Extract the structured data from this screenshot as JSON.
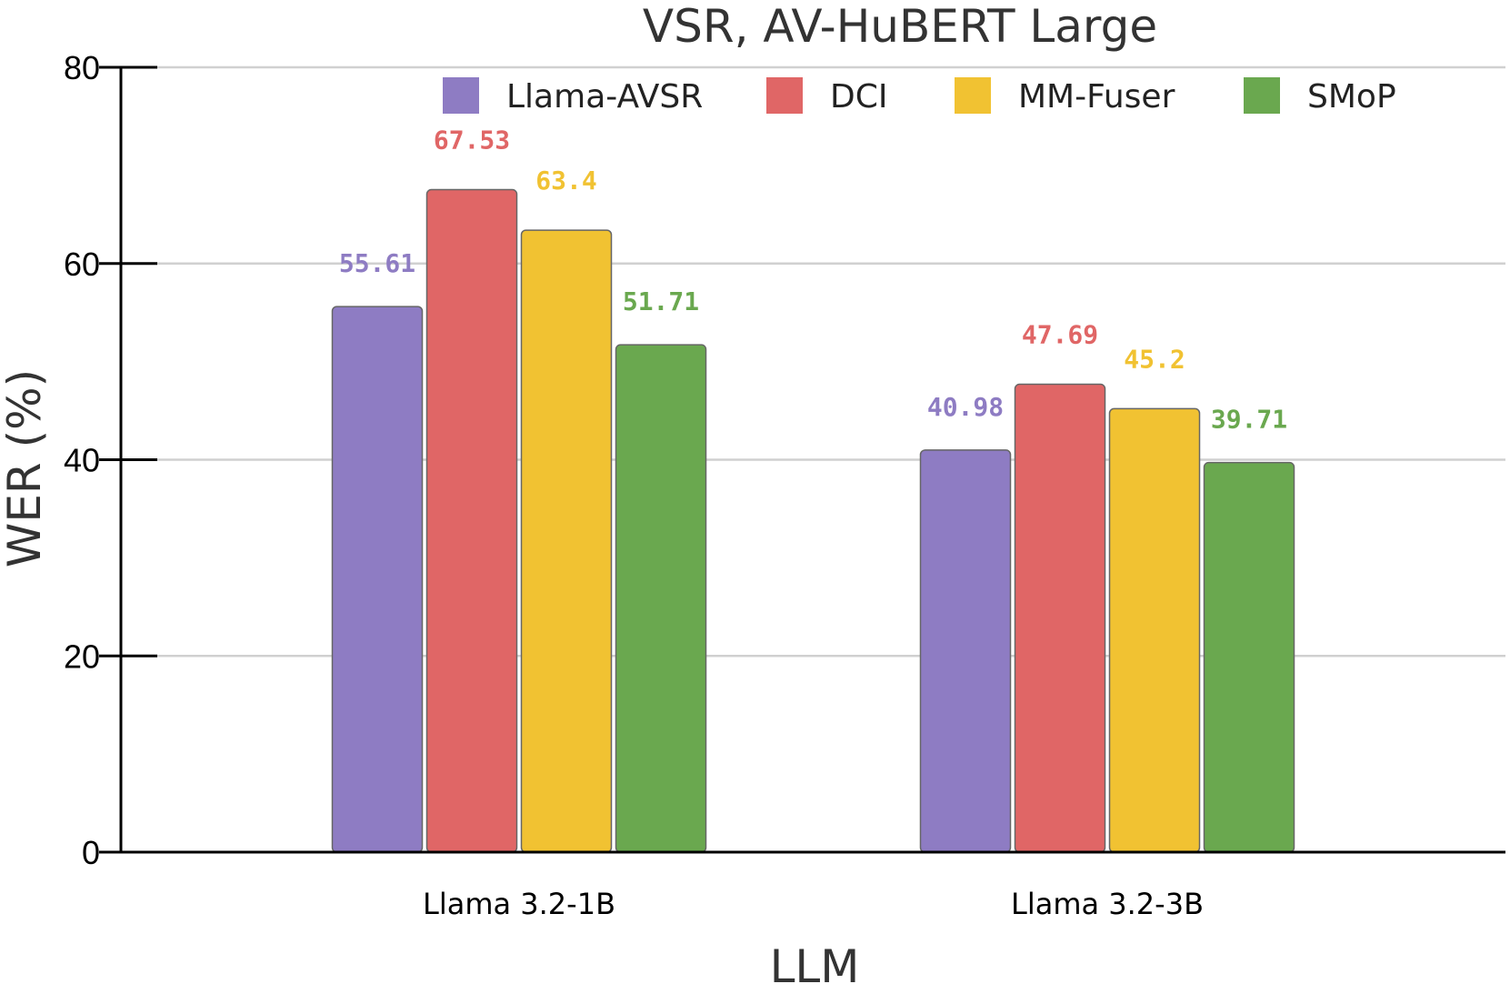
{
  "chart_data": {
    "type": "bar",
    "title": "VSR, AV-HuBERT Large",
    "xlabel": "LLM",
    "ylabel": "WER (%)",
    "ylim": [
      0,
      80
    ],
    "yticks": [
      0,
      20,
      40,
      60,
      80
    ],
    "grid": true,
    "legend_position": "top",
    "categories": [
      "Llama 3.2-1B",
      "Llama 3.2-3B"
    ],
    "series": [
      {
        "name": "Llama-AVSR",
        "color": "#8e7cc3",
        "values": [
          55.61,
          40.98
        ],
        "labels": [
          "55.61",
          "40.98"
        ]
      },
      {
        "name": "DCI",
        "color": "#e06666",
        "values": [
          67.53,
          47.69
        ],
        "labels": [
          "67.53",
          "47.69"
        ]
      },
      {
        "name": "MM-Fuser",
        "color": "#f1c232",
        "values": [
          63.4,
          45.2
        ],
        "labels": [
          "63.4",
          "45.2"
        ]
      },
      {
        "name": "SMoP",
        "color": "#6aa84f",
        "values": [
          51.71,
          39.71
        ],
        "labels": [
          "51.71",
          "39.71"
        ]
      }
    ]
  }
}
